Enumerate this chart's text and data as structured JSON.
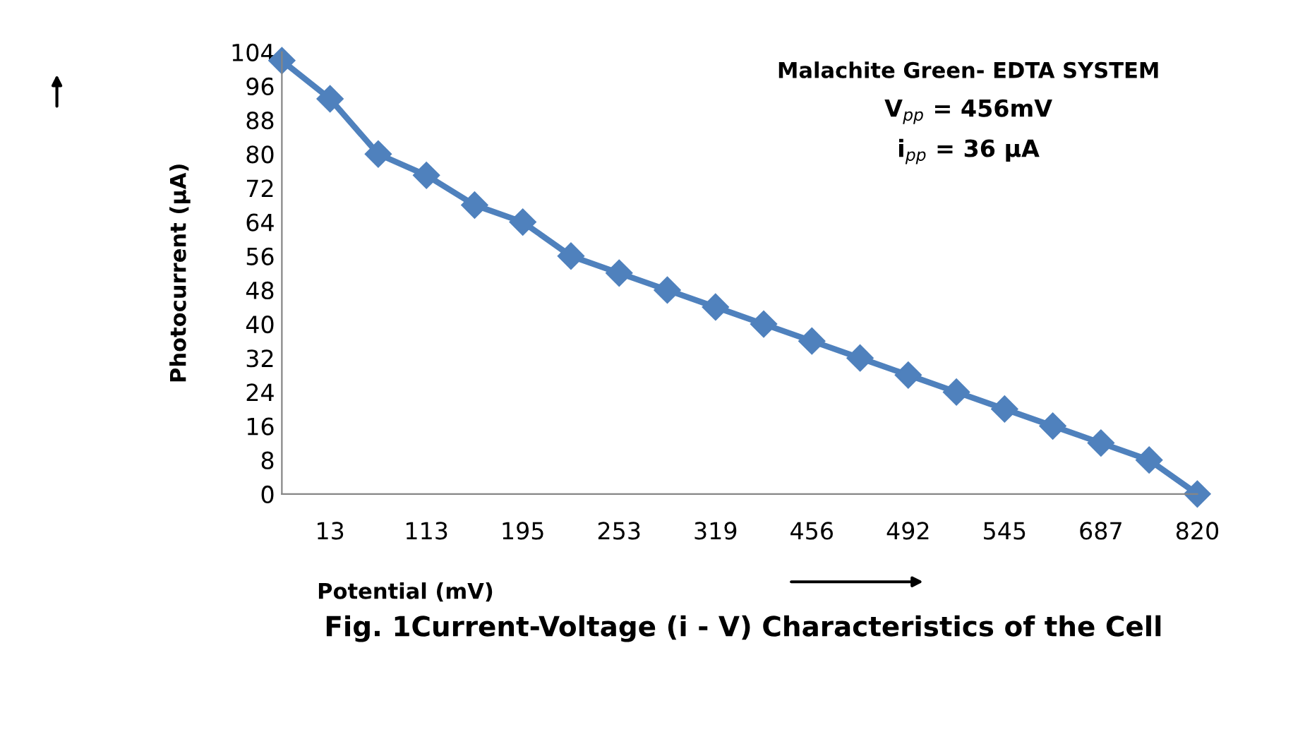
{
  "chart_data": {
    "type": "line",
    "categories": [
      null,
      "13",
      null,
      "113",
      null,
      "195",
      null,
      "253",
      null,
      "319",
      null,
      "456",
      null,
      "492",
      null,
      "545",
      null,
      "687",
      null,
      "820"
    ],
    "series": [
      {
        "color": "#4f81bd",
        "values": [
          102,
          93,
          80,
          75,
          68,
          64,
          56,
          52,
          48,
          44,
          40,
          36,
          32,
          28,
          24,
          20,
          16,
          12,
          8,
          0
        ]
      }
    ],
    "ylim": [
      0,
      104
    ],
    "yticks": [
      0,
      8,
      16,
      24,
      32,
      40,
      48,
      56,
      64,
      72,
      80,
      88,
      96,
      104
    ],
    "xlabel": "Potential (mV)",
    "ylabel": "Photocurrent (µA)",
    "annotations": [
      "Malachite Green- EDTA SYSTEM",
      "V$_{pp}$ = 456mV",
      "i$_{pp}$ = 36 µA",
      "Fig. 1Current-Voltage (i - V) Characteristics of the Cell"
    ],
    "marker": "diamond",
    "line_style": "solid",
    "grid": false,
    "legend": false
  }
}
